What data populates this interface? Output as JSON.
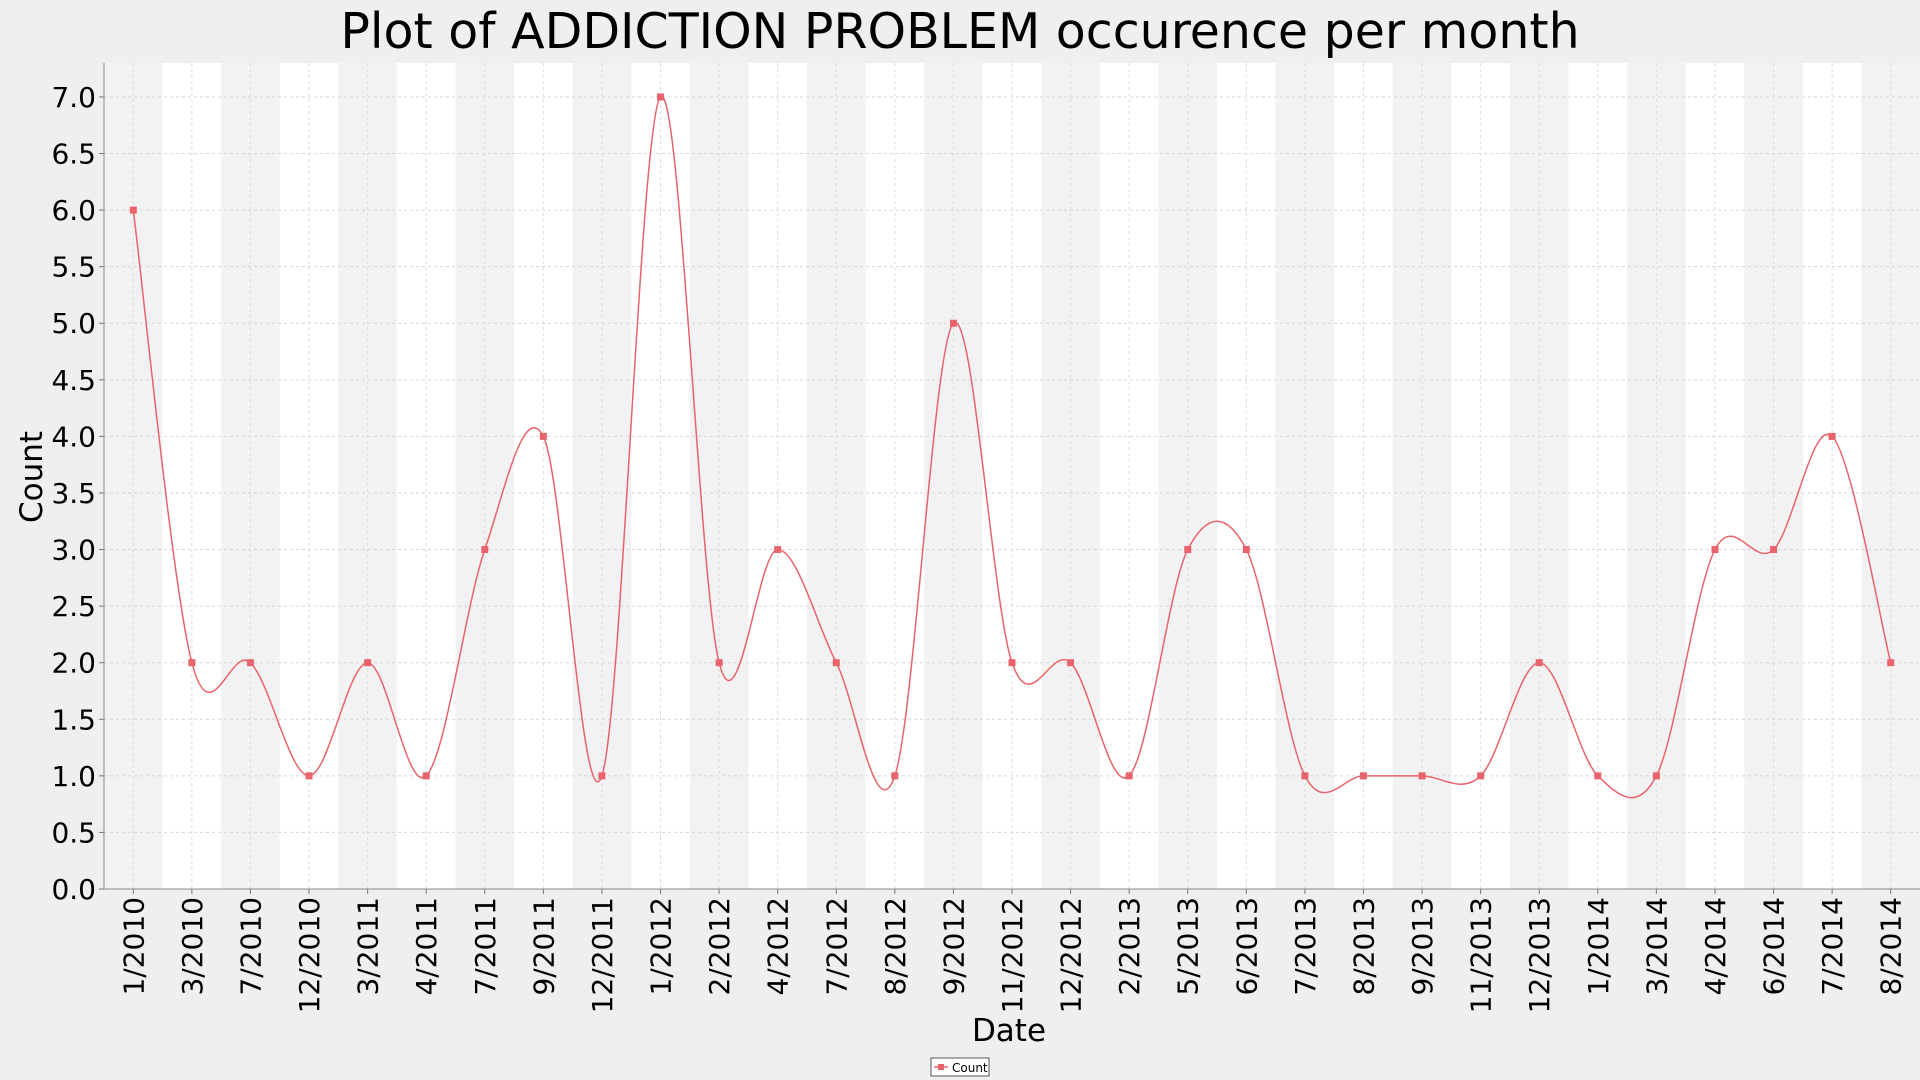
{
  "chart_data": {
    "type": "line",
    "title": "Plot of ADDICTION PROBLEM occurence per month",
    "xlabel": "Date",
    "ylabel": "Count",
    "ylim": [
      0.0,
      7.3
    ],
    "yticks": [
      "0.0",
      "0.5",
      "1.0",
      "1.5",
      "2.0",
      "2.5",
      "3.0",
      "3.5",
      "4.0",
      "4.5",
      "5.0",
      "5.5",
      "6.0",
      "6.5",
      "7.0"
    ],
    "categories": [
      "1/2010",
      "3/2010",
      "7/2010",
      "12/2010",
      "3/2011",
      "4/2011",
      "7/2011",
      "9/2011",
      "12/2011",
      "1/2012",
      "2/2012",
      "4/2012",
      "7/2012",
      "8/2012",
      "9/2012",
      "11/2012",
      "12/2012",
      "2/2013",
      "5/2013",
      "6/2013",
      "7/2013",
      "8/2013",
      "9/2013",
      "11/2013",
      "12/2013",
      "1/2014",
      "3/2014",
      "4/2014",
      "6/2014",
      "7/2014",
      "8/2014"
    ],
    "series": [
      {
        "name": "Count",
        "color": "#e8636b",
        "values": [
          6,
          2,
          2,
          1,
          2,
          1,
          3,
          4,
          1,
          7,
          2,
          3,
          2,
          1,
          5,
          2,
          2,
          1,
          3,
          3,
          1,
          1,
          1,
          1,
          2,
          1,
          1,
          3,
          3,
          4,
          2
        ]
      }
    ],
    "grid": true,
    "legend": "bottom-center",
    "band_colors": [
      "#f2f2f2",
      "#ffffff"
    ]
  }
}
